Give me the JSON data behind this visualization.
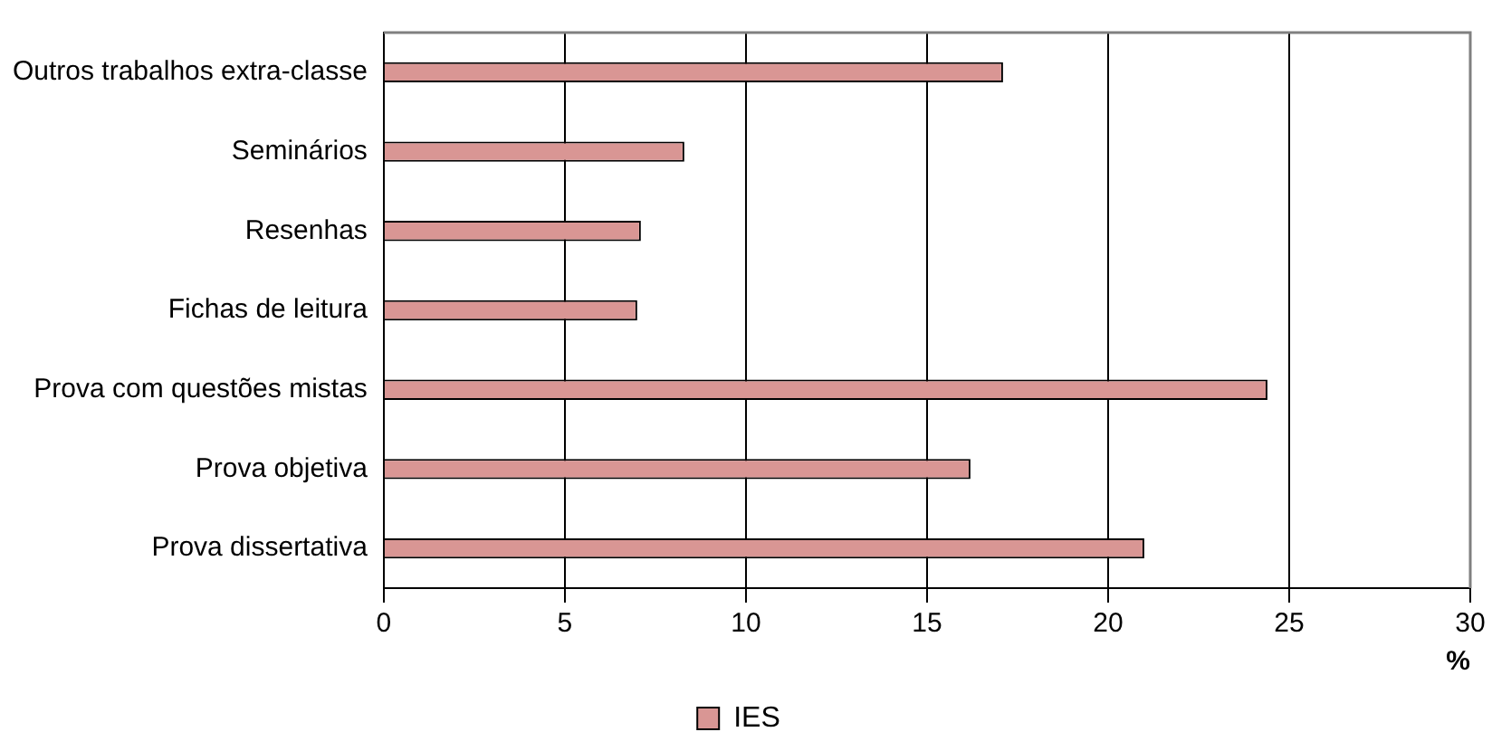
{
  "chart_data": {
    "type": "bar",
    "orientation": "horizontal",
    "xlabel": "%",
    "categories": [
      "Outros trabalhos extra-classe",
      "Seminários",
      "Resenhas",
      "Fichas de leitura",
      "Prova com questões mistas",
      "Prova objetiva",
      "Prova dissertativa"
    ],
    "series": [
      {
        "name": "IES",
        "color": "#d99694",
        "values": [
          17.1,
          8.3,
          7.1,
          7.0,
          24.4,
          16.2,
          21.0
        ]
      }
    ],
    "xlim": [
      0,
      30
    ],
    "xticks": [
      0,
      5,
      10,
      15,
      20,
      25,
      30
    ],
    "grid": "x",
    "legend": "bottom"
  }
}
